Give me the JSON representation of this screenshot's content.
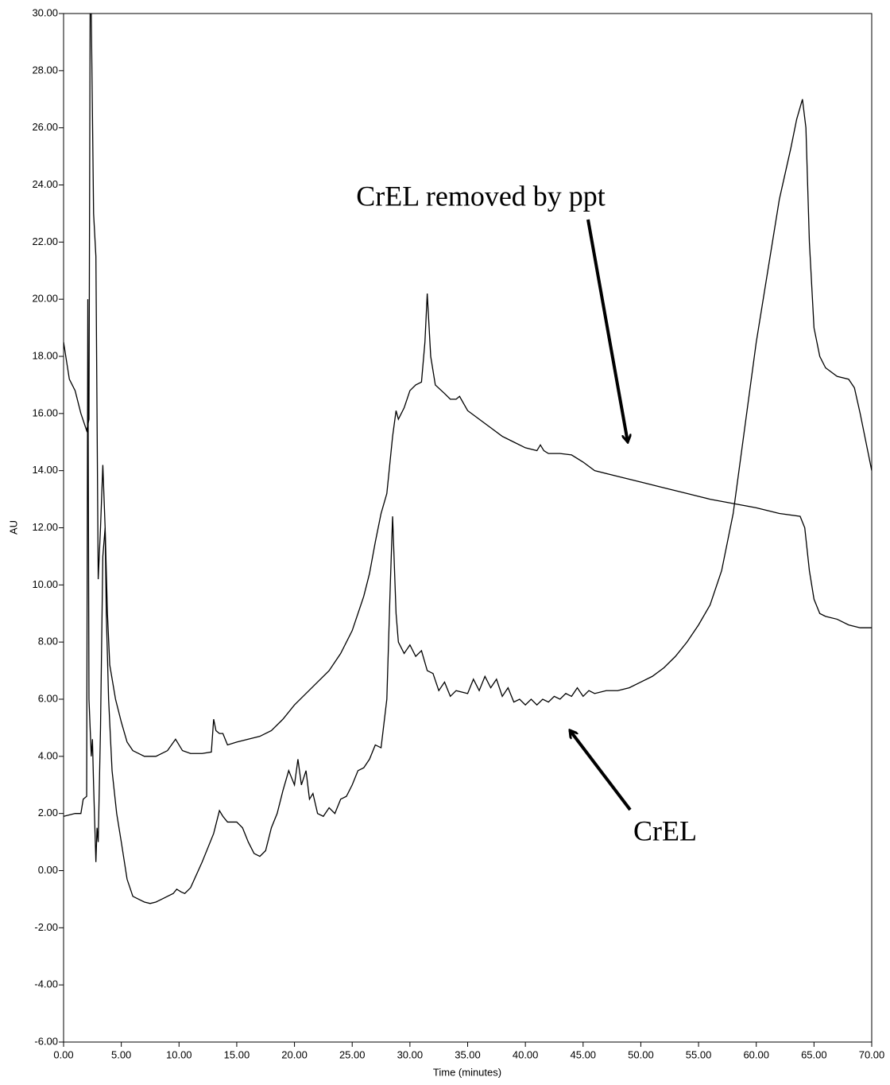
{
  "chart_data": {
    "type": "line",
    "xlabel": "Time (minutes)",
    "ylabel": "AU",
    "xlim": [
      0,
      70
    ],
    "ylim": [
      -6,
      30
    ],
    "xticks": [
      {
        "value": 0,
        "label": "0.00"
      },
      {
        "value": 5,
        "label": "5.00"
      },
      {
        "value": 10,
        "label": "10.00"
      },
      {
        "value": 15,
        "label": "15.00"
      },
      {
        "value": 20,
        "label": "20.00"
      },
      {
        "value": 25,
        "label": "25.00"
      },
      {
        "value": 30,
        "label": "30.00"
      },
      {
        "value": 35,
        "label": "35.00"
      },
      {
        "value": 40,
        "label": "40.00"
      },
      {
        "value": 45,
        "label": "45.00"
      },
      {
        "value": 50,
        "label": "50.00"
      },
      {
        "value": 55,
        "label": "55.00"
      },
      {
        "value": 60,
        "label": "60.00"
      },
      {
        "value": 65,
        "label": "65.00"
      },
      {
        "value": 70,
        "label": "70.00"
      }
    ],
    "yticks": [
      {
        "value": -6,
        "label": "-6.00"
      },
      {
        "value": -4,
        "label": "-4.00"
      },
      {
        "value": -2,
        "label": "-2.00"
      },
      {
        "value": 0,
        "label": "0.00"
      },
      {
        "value": 2,
        "label": "2.00"
      },
      {
        "value": 4,
        "label": "4.00"
      },
      {
        "value": 6,
        "label": "6.00"
      },
      {
        "value": 8,
        "label": "8.00"
      },
      {
        "value": 10,
        "label": "10.00"
      },
      {
        "value": 12,
        "label": "12.00"
      },
      {
        "value": 14,
        "label": "14.00"
      },
      {
        "value": 16,
        "label": "16.00"
      },
      {
        "value": 18,
        "label": "18.00"
      },
      {
        "value": 20,
        "label": "20.00"
      },
      {
        "value": 22,
        "label": "22.00"
      },
      {
        "value": 24,
        "label": "24.00"
      },
      {
        "value": 26,
        "label": "26.00"
      },
      {
        "value": 28,
        "label": "28.00"
      },
      {
        "value": 30,
        "label": "30.00"
      }
    ],
    "series": [
      {
        "name": "CrEL removed by ppt",
        "color": "#000000",
        "x": [
          0,
          0.5,
          1,
          1.5,
          2,
          2.2,
          2.3,
          2.4,
          2.6,
          2.8,
          3,
          3.2,
          3.4,
          3.6,
          3.8,
          4,
          4.5,
          5,
          5.5,
          6,
          7,
          8,
          9,
          9.7,
          10.3,
          11,
          12,
          12.8,
          13,
          13.2,
          13.5,
          13.8,
          14.2,
          15,
          16,
          17,
          18,
          19,
          20,
          21,
          22,
          23,
          24,
          25,
          26,
          26.5,
          27,
          27.5,
          28,
          28.5,
          28.8,
          29,
          29.5,
          30,
          30.5,
          31,
          31.3,
          31.5,
          31.8,
          32.2,
          33,
          33.5,
          34,
          34.3,
          35,
          36,
          37,
          38,
          39,
          40,
          41,
          41.3,
          41.6,
          42,
          43,
          44,
          45,
          46,
          48,
          50,
          52,
          54,
          55,
          56,
          58,
          60,
          62,
          63.8,
          64.2,
          64.6,
          65,
          65.5,
          66,
          67,
          68,
          69,
          70
        ],
        "values": [
          18.5,
          17.2,
          16.8,
          16.0,
          15.4,
          15.8,
          30,
          30,
          23,
          21.5,
          10.2,
          12,
          14.2,
          12,
          9,
          7.2,
          6.0,
          5.2,
          4.5,
          4.2,
          4.0,
          4.0,
          4.2,
          4.6,
          4.2,
          4.1,
          4.1,
          4.15,
          5.3,
          4.9,
          4.8,
          4.8,
          4.4,
          4.5,
          4.6,
          4.7,
          4.9,
          5.3,
          5.8,
          6.2,
          6.6,
          7.0,
          7.6,
          8.4,
          9.6,
          10.4,
          11.5,
          12.5,
          13.2,
          15.2,
          16.1,
          15.8,
          16.2,
          16.8,
          17.0,
          17.1,
          18.5,
          20.2,
          18,
          17.0,
          16.7,
          16.5,
          16.5,
          16.6,
          16.1,
          15.8,
          15.5,
          15.2,
          15.0,
          14.8,
          14.7,
          14.9,
          14.7,
          14.6,
          14.6,
          14.55,
          14.3,
          14.0,
          13.8,
          13.6,
          13.4,
          13.2,
          13.1,
          13.0,
          12.85,
          12.7,
          12.5,
          12.4,
          12.0,
          10.5,
          9.5,
          9.0,
          8.9,
          8.8,
          8.6,
          8.5,
          8.5
        ]
      },
      {
        "name": "CrEL",
        "color": "#000000",
        "x": [
          0,
          1,
          1.5,
          1.7,
          2,
          2.1,
          2.2,
          2.4,
          2.5,
          2.6,
          2.8,
          2.9,
          3,
          3.2,
          3.4,
          3.6,
          3.7,
          3.9,
          4.2,
          4.6,
          5,
          5.5,
          6,
          6.5,
          7,
          7.5,
          8,
          8.5,
          9,
          9.5,
          9.8,
          10.2,
          10.5,
          11,
          12,
          13,
          13.5,
          13.8,
          14.2,
          15,
          15.5,
          16,
          16.5,
          17,
          17.5,
          18,
          18.5,
          19,
          19.5,
          20,
          20.3,
          20.6,
          21,
          21.3,
          21.6,
          22,
          22.5,
          23,
          23.5,
          24,
          24.5,
          25,
          25.5,
          26,
          26.5,
          27,
          27.5,
          28,
          28.3,
          28.5,
          28.8,
          29,
          29.5,
          30,
          30.5,
          31,
          31.5,
          32,
          32.5,
          33,
          33.5,
          34,
          35,
          35.5,
          36,
          36.5,
          37,
          37.5,
          38,
          38.5,
          39,
          39.5,
          40,
          40.5,
          41,
          41.5,
          42,
          42.5,
          43,
          43.5,
          44,
          44.5,
          45,
          45.5,
          46,
          47,
          48,
          49,
          50,
          51,
          52,
          53,
          54,
          55,
          56,
          57,
          58,
          59,
          60,
          61,
          62,
          63,
          63.5,
          64,
          64.3,
          64.6,
          65,
          65.5,
          66,
          67,
          68,
          68.5,
          69,
          70
        ],
        "values": [
          1.9,
          2.0,
          2.0,
          2.5,
          2.6,
          20.0,
          6,
          4.0,
          4.6,
          3.0,
          0.3,
          1.5,
          1.0,
          5,
          11,
          12.0,
          9,
          6,
          3.5,
          2.0,
          1.0,
          -0.3,
          -0.9,
          -1.0,
          -1.1,
          -1.15,
          -1.1,
          -1.0,
          -0.9,
          -0.8,
          -0.65,
          -0.75,
          -0.8,
          -0.6,
          0.3,
          1.3,
          2.1,
          1.9,
          1.7,
          1.7,
          1.5,
          1.0,
          0.6,
          0.5,
          0.7,
          1.5,
          2.0,
          2.8,
          3.5,
          3.0,
          3.9,
          3.0,
          3.5,
          2.5,
          2.7,
          2.0,
          1.9,
          2.2,
          2.0,
          2.5,
          2.6,
          3.0,
          3.5,
          3.6,
          3.9,
          4.4,
          4.3,
          6.0,
          10,
          12.4,
          9,
          8.0,
          7.6,
          7.9,
          7.5,
          7.7,
          7.0,
          6.9,
          6.3,
          6.6,
          6.1,
          6.3,
          6.2,
          6.7,
          6.3,
          6.8,
          6.4,
          6.7,
          6.1,
          6.4,
          5.9,
          6.0,
          5.8,
          6.0,
          5.8,
          6.0,
          5.9,
          6.1,
          6.0,
          6.2,
          6.1,
          6.4,
          6.1,
          6.3,
          6.2,
          6.3,
          6.3,
          6.4,
          6.6,
          6.8,
          7.1,
          7.5,
          8.0,
          8.6,
          9.3,
          10.5,
          12.5,
          15.5,
          18.5,
          21,
          23.5,
          25.3,
          26.3,
          27.0,
          26.0,
          22,
          19,
          18,
          17.6,
          17.3,
          17.2,
          16.9,
          16.0,
          14.0
        ]
      }
    ]
  }
}
